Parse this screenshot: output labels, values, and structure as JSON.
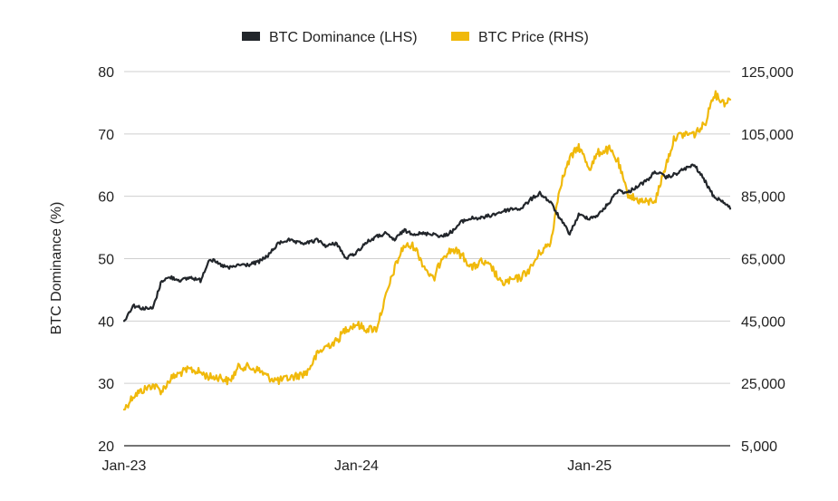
{
  "chart_data": {
    "type": "line",
    "title": "",
    "ylabel": "BTC Dominance (%)",
    "y2label": "",
    "xlabel": "",
    "legend_position": "top-center",
    "grid": true,
    "x_range": [
      "2023-01-01",
      "2025-08-10"
    ],
    "ylim": [
      20,
      80
    ],
    "y2lim": [
      5000,
      125000
    ],
    "y_ticks": [
      "20",
      "30",
      "40",
      "50",
      "60",
      "70",
      "80"
    ],
    "y2_ticks": [
      "5,000",
      "25,000",
      "45,000",
      "65,000",
      "85,000",
      "105,000",
      "125,000"
    ],
    "x_ticks": [
      {
        "label": "Jan-23",
        "date": "2023-01-01"
      },
      {
        "label": "Jan-24",
        "date": "2024-01-01"
      },
      {
        "label": "Jan-25",
        "date": "2025-01-01"
      }
    ],
    "series": [
      {
        "name": "BTC Dominance (LHS)",
        "axis": "left",
        "color": "#22262b",
        "points": [
          [
            "2023-01-01",
            40.0
          ],
          [
            "2023-01-15",
            42.5
          ],
          [
            "2023-02-01",
            42.0
          ],
          [
            "2023-02-15",
            42.0
          ],
          [
            "2023-03-01",
            46.5
          ],
          [
            "2023-03-15",
            47.0
          ],
          [
            "2023-04-01",
            46.5
          ],
          [
            "2023-04-15",
            47.0
          ],
          [
            "2023-05-01",
            46.5
          ],
          [
            "2023-05-15",
            50.0
          ],
          [
            "2023-06-01",
            49.0
          ],
          [
            "2023-06-15",
            48.5
          ],
          [
            "2023-07-01",
            49.0
          ],
          [
            "2023-07-15",
            49.0
          ],
          [
            "2023-08-01",
            49.5
          ],
          [
            "2023-08-15",
            50.5
          ],
          [
            "2023-09-01",
            52.5
          ],
          [
            "2023-09-15",
            53.0
          ],
          [
            "2023-10-01",
            52.5
          ],
          [
            "2023-10-15",
            52.5
          ],
          [
            "2023-11-01",
            53.0
          ],
          [
            "2023-11-15",
            52.0
          ],
          [
            "2023-12-01",
            52.5
          ],
          [
            "2023-12-15",
            50.0
          ],
          [
            "2024-01-01",
            51.0
          ],
          [
            "2024-01-15",
            52.5
          ],
          [
            "2024-02-01",
            53.5
          ],
          [
            "2024-02-15",
            54.0
          ],
          [
            "2024-03-01",
            53.0
          ],
          [
            "2024-03-15",
            54.5
          ],
          [
            "2024-04-01",
            54.0
          ],
          [
            "2024-04-15",
            54.0
          ],
          [
            "2024-05-01",
            54.0
          ],
          [
            "2024-05-15",
            53.5
          ],
          [
            "2024-06-01",
            54.5
          ],
          [
            "2024-06-15",
            56.0
          ],
          [
            "2024-07-01",
            56.5
          ],
          [
            "2024-07-15",
            56.5
          ],
          [
            "2024-08-01",
            57.0
          ],
          [
            "2024-08-15",
            57.5
          ],
          [
            "2024-09-01",
            58.0
          ],
          [
            "2024-09-15",
            58.0
          ],
          [
            "2024-10-01",
            59.5
          ],
          [
            "2024-10-15",
            60.5
          ],
          [
            "2024-11-01",
            59.0
          ],
          [
            "2024-11-15",
            56.5
          ],
          [
            "2024-12-01",
            54.0
          ],
          [
            "2024-12-15",
            57.0
          ],
          [
            "2025-01-01",
            56.5
          ],
          [
            "2025-01-15",
            57.0
          ],
          [
            "2025-02-01",
            59.0
          ],
          [
            "2025-02-15",
            61.0
          ],
          [
            "2025-03-01",
            60.5
          ],
          [
            "2025-03-15",
            61.5
          ],
          [
            "2025-04-01",
            62.5
          ],
          [
            "2025-04-15",
            64.0
          ],
          [
            "2025-05-01",
            63.0
          ],
          [
            "2025-05-15",
            63.5
          ],
          [
            "2025-06-01",
            64.5
          ],
          [
            "2025-06-15",
            65.0
          ],
          [
            "2025-07-01",
            62.5
          ],
          [
            "2025-07-15",
            60.0
          ],
          [
            "2025-08-01",
            59.0
          ],
          [
            "2025-08-10",
            58.0
          ]
        ]
      },
      {
        "name": "BTC Price (RHS)",
        "axis": "right",
        "color": "#f0b90b",
        "points": [
          [
            "2023-01-01",
            16600
          ],
          [
            "2023-01-15",
            21000
          ],
          [
            "2023-02-01",
            23000
          ],
          [
            "2023-02-15",
            24500
          ],
          [
            "2023-03-01",
            22500
          ],
          [
            "2023-03-15",
            26500
          ],
          [
            "2023-04-01",
            28500
          ],
          [
            "2023-04-15",
            29500
          ],
          [
            "2023-05-01",
            28500
          ],
          [
            "2023-05-15",
            27000
          ],
          [
            "2023-06-01",
            27000
          ],
          [
            "2023-06-15",
            25500
          ],
          [
            "2023-07-01",
            30500
          ],
          [
            "2023-07-15",
            30200
          ],
          [
            "2023-08-01",
            29200
          ],
          [
            "2023-08-15",
            27000
          ],
          [
            "2023-09-01",
            25800
          ],
          [
            "2023-09-15",
            26600
          ],
          [
            "2023-10-01",
            27500
          ],
          [
            "2023-10-15",
            28500
          ],
          [
            "2023-11-01",
            34500
          ],
          [
            "2023-11-15",
            37000
          ],
          [
            "2023-12-01",
            38500
          ],
          [
            "2023-12-15",
            42500
          ],
          [
            "2024-01-01",
            44000
          ],
          [
            "2024-01-15",
            42500
          ],
          [
            "2024-02-01",
            42500
          ],
          [
            "2024-02-15",
            52000
          ],
          [
            "2024-03-01",
            62000
          ],
          [
            "2024-03-15",
            69000
          ],
          [
            "2024-04-01",
            69000
          ],
          [
            "2024-04-15",
            63000
          ],
          [
            "2024-05-01",
            58000
          ],
          [
            "2024-05-15",
            66000
          ],
          [
            "2024-06-01",
            68000
          ],
          [
            "2024-06-15",
            66000
          ],
          [
            "2024-07-01",
            62000
          ],
          [
            "2024-07-15",
            64000
          ],
          [
            "2024-08-01",
            62000
          ],
          [
            "2024-08-15",
            57000
          ],
          [
            "2024-09-01",
            58000
          ],
          [
            "2024-09-15",
            59000
          ],
          [
            "2024-10-01",
            62000
          ],
          [
            "2024-10-15",
            67000
          ],
          [
            "2024-11-01",
            70000
          ],
          [
            "2024-11-15",
            88000
          ],
          [
            "2024-12-01",
            97000
          ],
          [
            "2024-12-15",
            101000
          ],
          [
            "2025-01-01",
            94000
          ],
          [
            "2025-01-15",
            99000
          ],
          [
            "2025-02-01",
            100000
          ],
          [
            "2025-02-15",
            96000
          ],
          [
            "2025-03-01",
            86000
          ],
          [
            "2025-03-15",
            84000
          ],
          [
            "2025-04-01",
            83000
          ],
          [
            "2025-04-15",
            84000
          ],
          [
            "2025-05-01",
            95000
          ],
          [
            "2025-05-15",
            104000
          ],
          [
            "2025-06-01",
            105000
          ],
          [
            "2025-06-15",
            105000
          ],
          [
            "2025-07-01",
            108000
          ],
          [
            "2025-07-15",
            118000
          ],
          [
            "2025-08-01",
            115000
          ],
          [
            "2025-08-10",
            116000
          ]
        ]
      }
    ]
  }
}
